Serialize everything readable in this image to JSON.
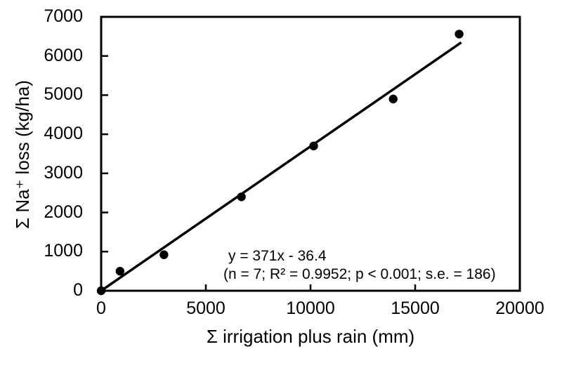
{
  "figure": {
    "background": "#ffffff",
    "ink": "#000000"
  },
  "chart_data": {
    "type": "scatter",
    "title": "",
    "xlabel": "Σ irrigation plus rain (mm)",
    "ylabel": "Σ Na⁺ loss (kg/ha)",
    "xlim": [
      0,
      20000
    ],
    "ylim": [
      0,
      7000
    ],
    "x_ticks": [
      0,
      5000,
      10000,
      15000,
      20000
    ],
    "y_ticks": [
      0,
      1000,
      2000,
      3000,
      4000,
      5000,
      6000,
      7000
    ],
    "grid": false,
    "legend": "none",
    "marker": {
      "shape": "circle",
      "color": "#000000",
      "radius_px": 6.2
    },
    "points": [
      {
        "x": 0,
        "y": 0
      },
      {
        "x": 900,
        "y": 500
      },
      {
        "x": 3000,
        "y": 920
      },
      {
        "x": 6700,
        "y": 2400
      },
      {
        "x": 10150,
        "y": 3700
      },
      {
        "x": 13950,
        "y": 4900
      },
      {
        "x": 17100,
        "y": 6560
      }
    ],
    "trendline": {
      "x1": 0,
      "y1": 0,
      "x2": 17200,
      "y2": 6345
    },
    "annotation": {
      "line1": "y = 371x - 36.4",
      "line2": "(n = 7; R² = 0.9952; p < 0.001; s.e. = 186)"
    }
  }
}
